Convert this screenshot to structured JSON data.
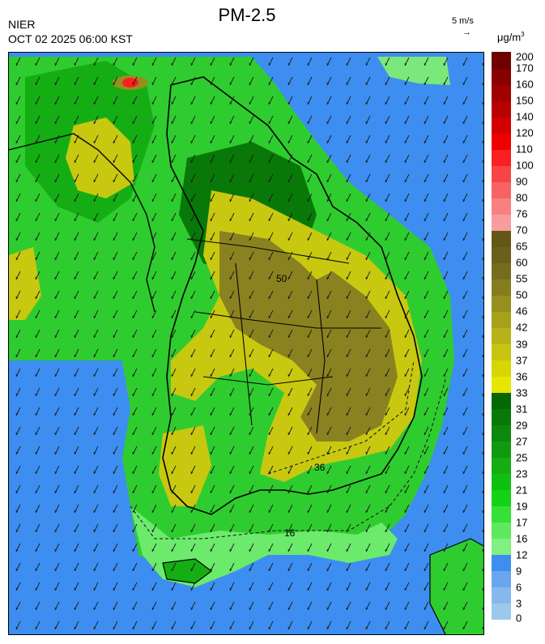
{
  "header": {
    "agency": "NIER",
    "datetime": "OCT 02 2025 06:00 KST",
    "title": "PM-2.5",
    "wind_scale_label": "5 m/s",
    "wind_scale_arrow": "→",
    "unit_prefix": "μg/m",
    "unit_sup": "3"
  },
  "colorbar": {
    "labels": [
      "0",
      "3",
      "6",
      "9",
      "12",
      "16",
      "17",
      "19",
      "21",
      "23",
      "25",
      "27",
      "29",
      "31",
      "33",
      "36",
      "37",
      "39",
      "42",
      "46",
      "50",
      "55",
      "60",
      "65",
      "70",
      "76",
      "80",
      "90",
      "100",
      "110",
      "120",
      "140",
      "150",
      "160",
      "170",
      "200"
    ],
    "colors": [
      "#9cc8ec",
      "#86b8ee",
      "#6aa6ef",
      "#3d8ef0",
      "#80f080",
      "#5ee85e",
      "#36e036",
      "#14d214",
      "#10c010",
      "#14ae14",
      "#109a10",
      "#0c880c",
      "#087808",
      "#046804",
      "#e6e600",
      "#d6d600",
      "#c6c612",
      "#b6b218",
      "#a6a01a",
      "#968e1e",
      "#867c1e",
      "#766c1e",
      "#6a601c",
      "#645614",
      "#f89c9c",
      "#f88080",
      "#f86262",
      "#f84444",
      "#f82020",
      "#ee0000",
      "#d20000",
      "#b80000",
      "#a00000",
      "#880000",
      "#6e0000"
    ],
    "ranges": [
      {
        "range": "0-3",
        "color": "#9cc8ec"
      },
      {
        "range": "3-6",
        "color": "#86b8ee"
      },
      {
        "range": "6-9",
        "color": "#6aa6ef"
      },
      {
        "range": "9-12",
        "color": "#3d8ef0"
      },
      {
        "range": "16-17",
        "color": "#80f080"
      },
      {
        "range": "36-37",
        "color": "#e6e600"
      },
      {
        "range": "76-80",
        "color": "#f89c9c"
      },
      {
        "range": "200+",
        "color": "#6e0000"
      }
    ]
  },
  "map": {
    "contour_labels": [
      {
        "text": "16",
        "label": "contour-16-label"
      },
      {
        "text": "36",
        "label": "contour-36-label"
      },
      {
        "text": "50",
        "label": "contour-50-label"
      }
    ]
  }
}
